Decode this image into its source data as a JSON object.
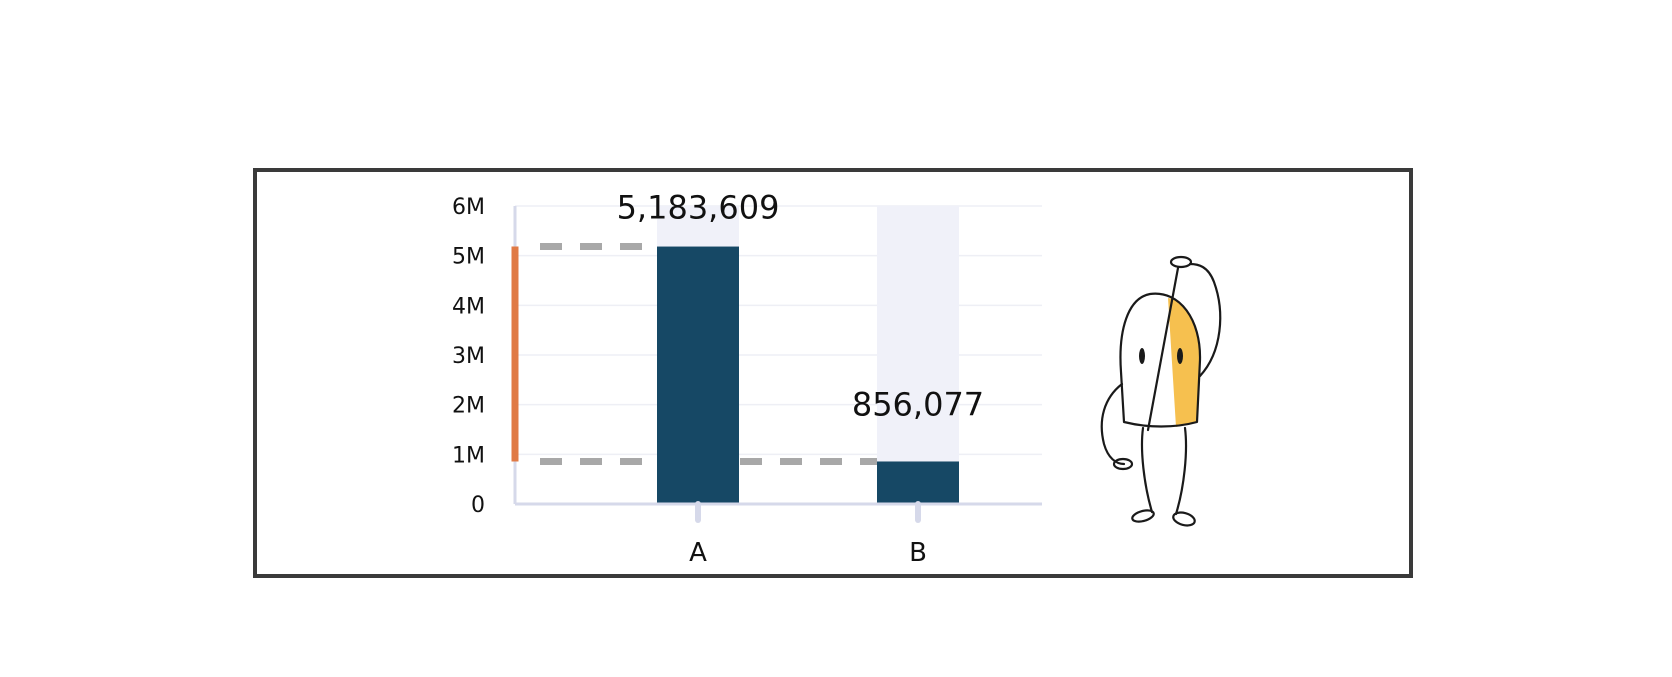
{
  "chart_data": {
    "type": "bar",
    "categories": [
      "A",
      "B"
    ],
    "values": [
      5183609,
      856077
    ],
    "value_labels": [
      "5,183,609",
      "856,077"
    ],
    "ylim": [
      0,
      6000000
    ],
    "yticks": [
      0,
      1000000,
      2000000,
      3000000,
      4000000,
      5000000,
      6000000
    ],
    "ytick_labels": [
      "0",
      "1M",
      "2M",
      "3M",
      "4M",
      "5M",
      "6M"
    ],
    "title": "",
    "xlabel": "",
    "ylabel": "",
    "grid": true,
    "legend": "none",
    "difference_marker": true,
    "colors": {
      "bar": "#164865",
      "bar_background": "#f0f1f9",
      "axis": "#d6d9ea",
      "grid": "#eeeff5",
      "guide_line": "#a8a8a8",
      "difference_marker": "#e07a45",
      "frame": "#3a3a3a",
      "character_accent": "#f6c04f"
    }
  }
}
